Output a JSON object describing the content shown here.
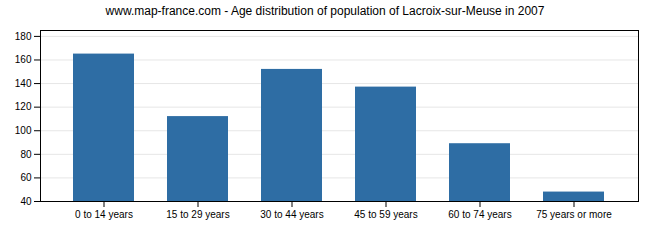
{
  "chart_data": {
    "type": "bar",
    "title": "www.map-france.com - Age distribution of population of Lacroix-sur-Meuse in 2007",
    "categories": [
      "0 to 14 years",
      "15 to 29 years",
      "30 to 44 years",
      "45 to 59 years",
      "60 to 74 years",
      "75 years or more"
    ],
    "values": [
      165,
      112,
      152,
      137,
      89,
      48
    ],
    "color": "#2e6da4",
    "ylim": [
      40,
      185
    ],
    "yticks": [
      40,
      60,
      80,
      100,
      120,
      140,
      160,
      180
    ],
    "grid": true
  }
}
